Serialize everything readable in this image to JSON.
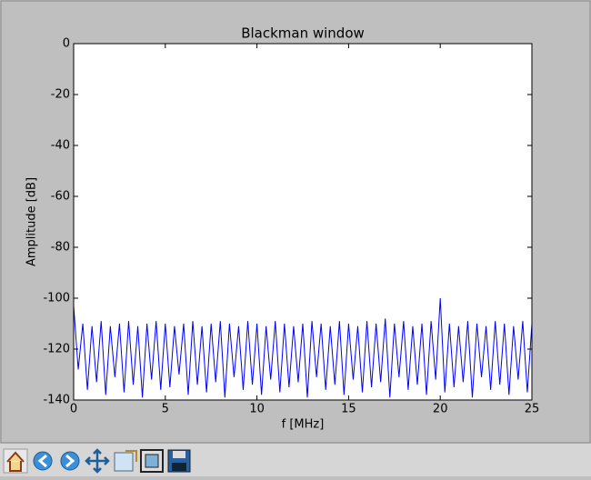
{
  "chart_data": {
    "type": "line",
    "title": "Blackman window",
    "xlabel": "f [MHz]",
    "ylabel": "Amplitude [dB]",
    "x": [
      0,
      0.25,
      0.5,
      0.75,
      1,
      1.25,
      1.5,
      1.75,
      2,
      2.25,
      2.5,
      2.75,
      3,
      3.25,
      3.5,
      3.75,
      4,
      4.25,
      4.5,
      4.75,
      5,
      5.25,
      5.5,
      5.75,
      6,
      6.25,
      6.5,
      6.75,
      7,
      7.25,
      7.5,
      7.75,
      8,
      8.25,
      8.5,
      8.75,
      9,
      9.25,
      9.5,
      9.75,
      10,
      10.25,
      10.5,
      10.75,
      11,
      11.25,
      11.5,
      11.75,
      12,
      12.25,
      12.5,
      12.75,
      13,
      13.25,
      13.5,
      13.75,
      14,
      14.25,
      14.5,
      14.75,
      15,
      15.25,
      15.5,
      15.75,
      16,
      16.25,
      16.5,
      16.75,
      17,
      17.25,
      17.5,
      17.75,
      18,
      18.25,
      18.5,
      18.75,
      19,
      19.25,
      19.5,
      19.75,
      20,
      20.25,
      20.5,
      20.75,
      21,
      21.25,
      21.5,
      21.75,
      22,
      22.25,
      22.5,
      22.75,
      23,
      23.25,
      23.5,
      23.75,
      24,
      24.25,
      24.5,
      24.75,
      25
    ],
    "series": [
      {
        "color": "#0000ff",
        "values": [
          -103,
          -128,
          -110,
          -136,
          -111,
          -133,
          -109,
          -138,
          -111,
          -131,
          -110,
          -137,
          -109,
          -134,
          -111,
          -139,
          -110,
          -132,
          -109,
          -136,
          -110,
          -135,
          -111,
          -130,
          -110,
          -138,
          -109,
          -134,
          -111,
          -137,
          -110,
          -133,
          -109,
          -139,
          -110,
          -131,
          -111,
          -136,
          -109,
          -134,
          -110,
          -138,
          -111,
          -132,
          -109,
          -137,
          -110,
          -135,
          -111,
          -133,
          -110,
          -139,
          -109,
          -131,
          -110,
          -136,
          -111,
          -134,
          -109,
          -138,
          -110,
          -132,
          -111,
          -137,
          -109,
          -135,
          -110,
          -133,
          -108,
          -139,
          -110,
          -131,
          -109,
          -136,
          -111,
          -134,
          -110,
          -138,
          -109,
          -132,
          -100,
          -137,
          -110,
          -135,
          -111,
          -133,
          -109,
          -139,
          -110,
          -131,
          -111,
          -136,
          -109,
          -134,
          -110,
          -138,
          -111,
          -132,
          -109,
          -137,
          -110
        ]
      }
    ],
    "xlim": [
      0,
      25
    ],
    "ylim": [
      -140,
      0
    ],
    "xticks": [
      0,
      5,
      10,
      15,
      20,
      25
    ],
    "yticks": [
      0,
      -20,
      -40,
      -60,
      -80,
      -100,
      -120,
      -140
    ]
  }
}
